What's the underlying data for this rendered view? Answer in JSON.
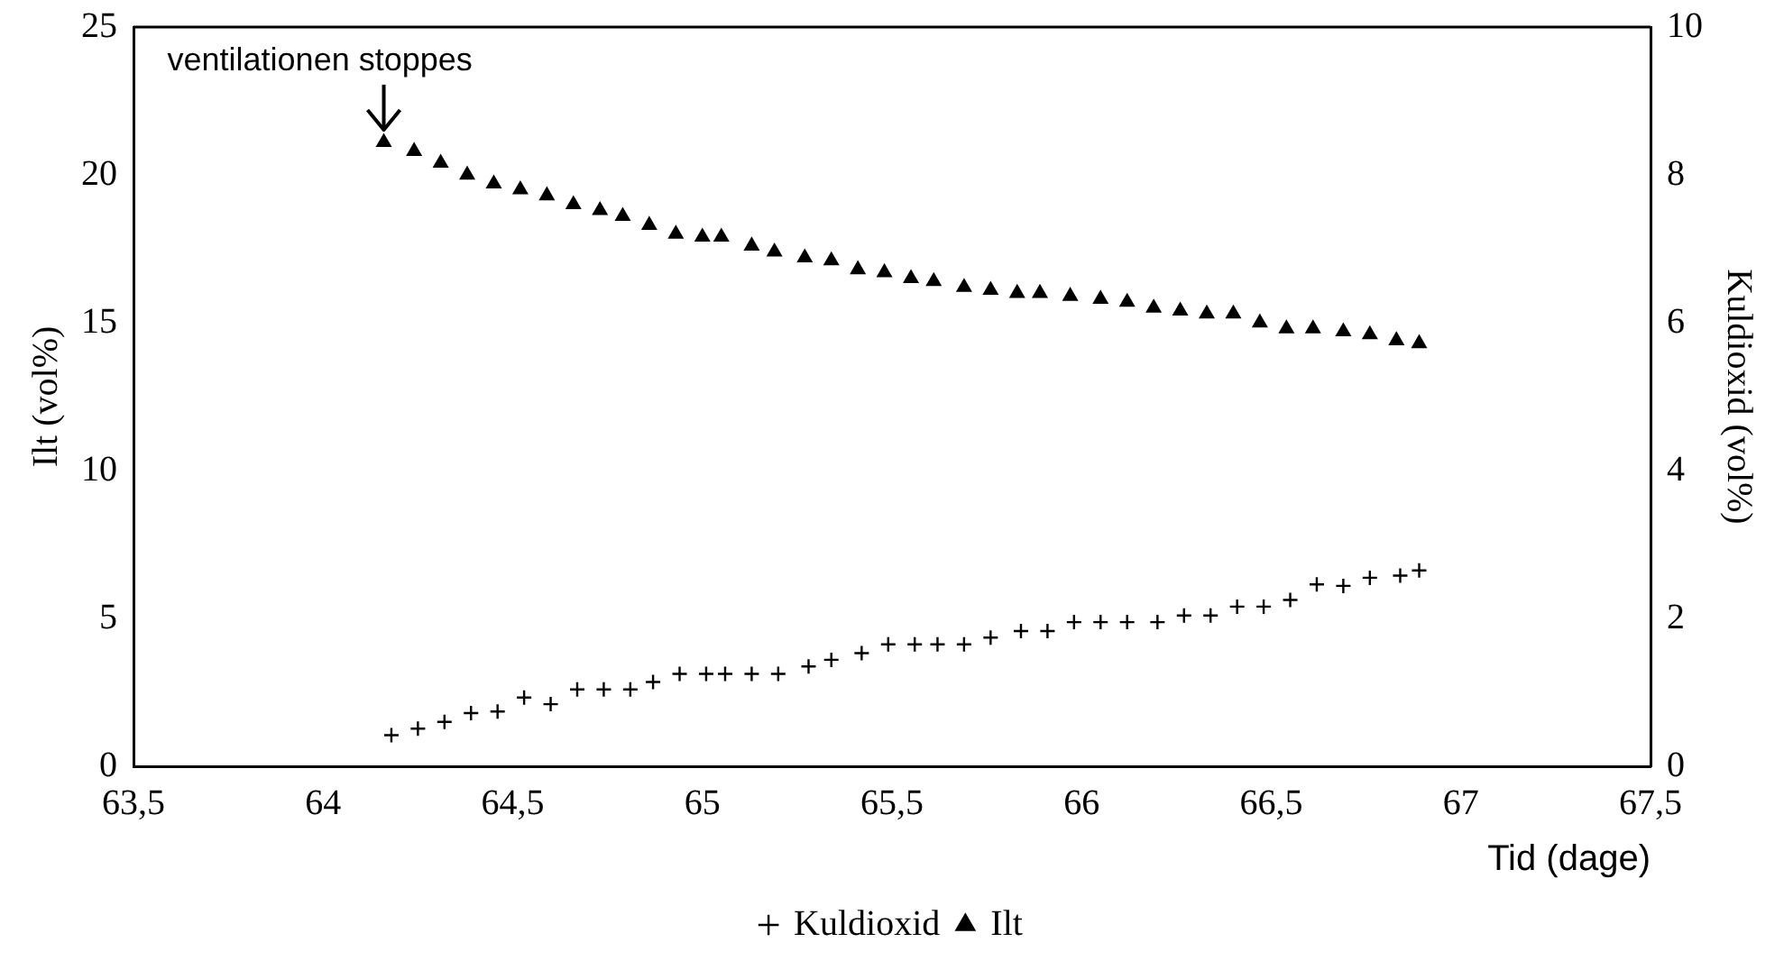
{
  "chart_data": {
    "type": "scatter",
    "xlabel": "Tid (dage)",
    "ylabel": "Ilt (vol%)",
    "y2label": "Kuldioxid (vol%)",
    "xlim": [
      63.5,
      67.5
    ],
    "xticks": [
      {
        "value": 63.5,
        "label": "63,5"
      },
      64,
      {
        "value": 64.5,
        "label": "64,5"
      },
      65,
      {
        "value": 65.5,
        "label": "65,5"
      },
      66,
      {
        "value": 66.5,
        "label": "66,5"
      },
      67,
      {
        "value": 67.5,
        "label": "67,5"
      }
    ],
    "ylim": [
      0,
      25
    ],
    "yticks": [
      0,
      5,
      10,
      15,
      20,
      25
    ],
    "y2lim": [
      0,
      10
    ],
    "y2ticks": [
      0,
      2,
      4,
      6,
      8,
      10
    ],
    "grid": false,
    "legend": "bottom",
    "annotations": [
      {
        "text": "ventilationen stoppes",
        "x": 64.16,
        "y": 21.1
      }
    ],
    "series": [
      {
        "name": "Kuldioxid",
        "color": "#000000",
        "axis": "y2",
        "marker": "cross",
        "x": [
          64.18,
          64.25,
          64.32,
          64.39,
          64.46,
          64.53,
          64.6,
          64.67,
          64.74,
          64.81,
          64.87,
          64.94,
          65.01,
          65.06,
          65.13,
          65.2,
          65.28,
          65.34,
          65.42,
          65.49,
          65.56,
          65.62,
          65.69,
          65.76,
          65.84,
          65.91,
          65.98,
          66.05,
          66.12,
          66.2,
          66.27,
          66.34,
          66.41,
          66.48,
          66.55,
          66.62,
          66.69,
          66.76,
          66.84,
          66.89
        ],
        "values": [
          0.42,
          0.51,
          0.6,
          0.72,
          0.74,
          0.93,
          0.84,
          1.04,
          1.04,
          1.04,
          1.14,
          1.25,
          1.25,
          1.25,
          1.25,
          1.25,
          1.35,
          1.44,
          1.53,
          1.65,
          1.65,
          1.65,
          1.65,
          1.74,
          1.83,
          1.83,
          1.95,
          1.95,
          1.95,
          1.95,
          2.04,
          2.04,
          2.16,
          2.16,
          2.25,
          2.46,
          2.44,
          2.55,
          2.58,
          2.65
        ]
      },
      {
        "name": "Ilt",
        "color": "#000000",
        "marker": "triangle",
        "x": [
          64.16,
          64.24,
          64.31,
          64.38,
          64.45,
          64.52,
          64.59,
          64.66,
          64.73,
          64.79,
          64.86,
          64.93,
          65.0,
          65.05,
          65.13,
          65.19,
          65.27,
          65.34,
          65.41,
          65.48,
          65.55,
          65.61,
          65.69,
          65.76,
          65.83,
          65.89,
          65.97,
          66.05,
          66.12,
          66.19,
          66.26,
          66.33,
          66.4,
          66.47,
          66.54,
          66.61,
          66.69,
          66.76,
          66.83,
          66.89
        ],
        "values": [
          21.1,
          20.8,
          20.4,
          20.0,
          19.7,
          19.5,
          19.3,
          19.0,
          18.8,
          18.6,
          18.3,
          18.0,
          17.9,
          17.9,
          17.6,
          17.4,
          17.2,
          17.1,
          16.8,
          16.7,
          16.5,
          16.4,
          16.2,
          16.1,
          16.0,
          16.0,
          15.9,
          15.8,
          15.7,
          15.5,
          15.4,
          15.3,
          15.3,
          15.0,
          14.8,
          14.8,
          14.7,
          14.6,
          14.4,
          14.3
        ]
      }
    ]
  }
}
